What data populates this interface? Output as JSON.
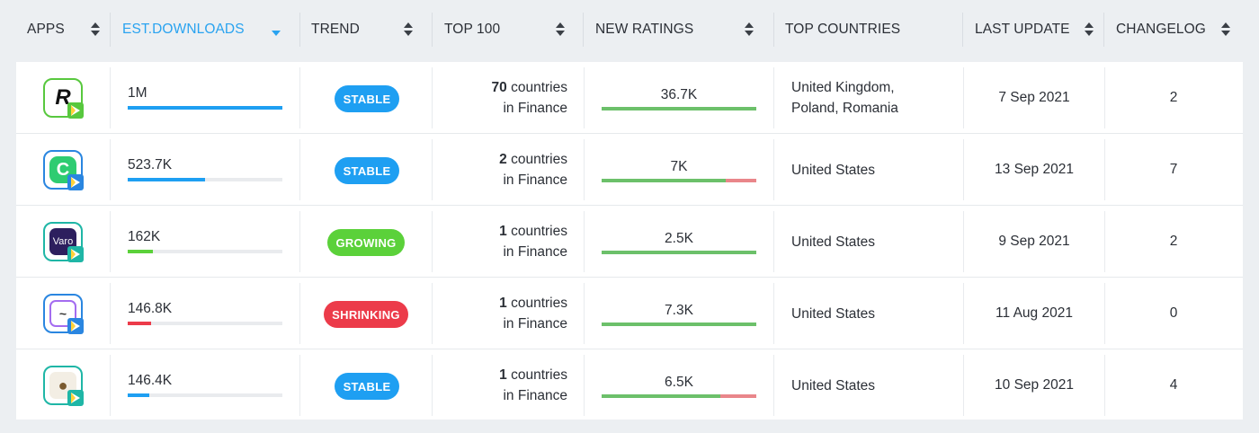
{
  "columns": {
    "apps": "APPS",
    "est_downloads": "EST.DOWNLOADS",
    "trend": "TREND",
    "top100": "TOP 100",
    "new_ratings": "NEW RATINGS",
    "top_countries": "TOP COUNTRIES",
    "last_update": "LAST UPDATE",
    "changelog": "CHANGELOG"
  },
  "colors": {
    "accent": "#29a3f0",
    "stable": "#1e9ff2",
    "growing": "#5bd13a",
    "shrinking": "#ec3b4a",
    "ratings_positive": "#6cc06a",
    "ratings_negative": "#e9868a"
  },
  "rows": [
    {
      "app_icon": "revolut-app-icon",
      "downloads": "1M",
      "downloads_fraction": 1.0,
      "downloads_bar_color": "#1e9ff2",
      "trend": "STABLE",
      "trend_color": "#1e9ff2",
      "top100_count": "70",
      "top100_suffix": "countries",
      "top100_category": "in Finance",
      "ratings": "36.7K",
      "ratings_positive_fraction": 1.0,
      "countries_line1": "United Kingdom,",
      "countries_line2": "Poland, Romania",
      "last_update": "7 Sep 2021",
      "changelog": "2"
    },
    {
      "app_icon": "cash-app-icon",
      "downloads": "523.7K",
      "downloads_fraction": 0.5,
      "downloads_bar_color": "#1e9ff2",
      "trend": "STABLE",
      "trend_color": "#1e9ff2",
      "top100_count": "2",
      "top100_suffix": "countries",
      "top100_category": "in Finance",
      "ratings": "7K",
      "ratings_positive_fraction": 0.8,
      "countries_line1": "United States",
      "countries_line2": "",
      "last_update": "13 Sep 2021",
      "changelog": "7"
    },
    {
      "app_icon": "varo-app-icon",
      "downloads": "162K",
      "downloads_fraction": 0.16,
      "downloads_bar_color": "#5bd13a",
      "trend": "GROWING",
      "trend_color": "#5bd13a",
      "top100_count": "1",
      "top100_suffix": "countries",
      "top100_category": "in Finance",
      "ratings": "2.5K",
      "ratings_positive_fraction": 1.0,
      "countries_line1": "United States",
      "countries_line2": "",
      "last_update": "9 Sep 2021",
      "changelog": "2"
    },
    {
      "app_icon": "finance-app-icon",
      "downloads": "146.8K",
      "downloads_fraction": 0.15,
      "downloads_bar_color": "#ec3b4a",
      "trend": "SHRINKING",
      "trend_color": "#ec3b4a",
      "top100_count": "1",
      "top100_suffix": "countries",
      "top100_category": "in Finance",
      "ratings": "7.3K",
      "ratings_positive_fraction": 1.0,
      "countries_line1": "United States",
      "countries_line2": "",
      "last_update": "11 Aug 2021",
      "changelog": "0"
    },
    {
      "app_icon": "dog-app-icon",
      "downloads": "146.4K",
      "downloads_fraction": 0.14,
      "downloads_bar_color": "#1e9ff2",
      "trend": "STABLE",
      "trend_color": "#1e9ff2",
      "top100_count": "1",
      "top100_suffix": "countries",
      "top100_category": "in Finance",
      "ratings": "6.5K",
      "ratings_positive_fraction": 0.77,
      "countries_line1": "United States",
      "countries_line2": "",
      "last_update": "10 Sep 2021",
      "changelog": "4"
    }
  ]
}
